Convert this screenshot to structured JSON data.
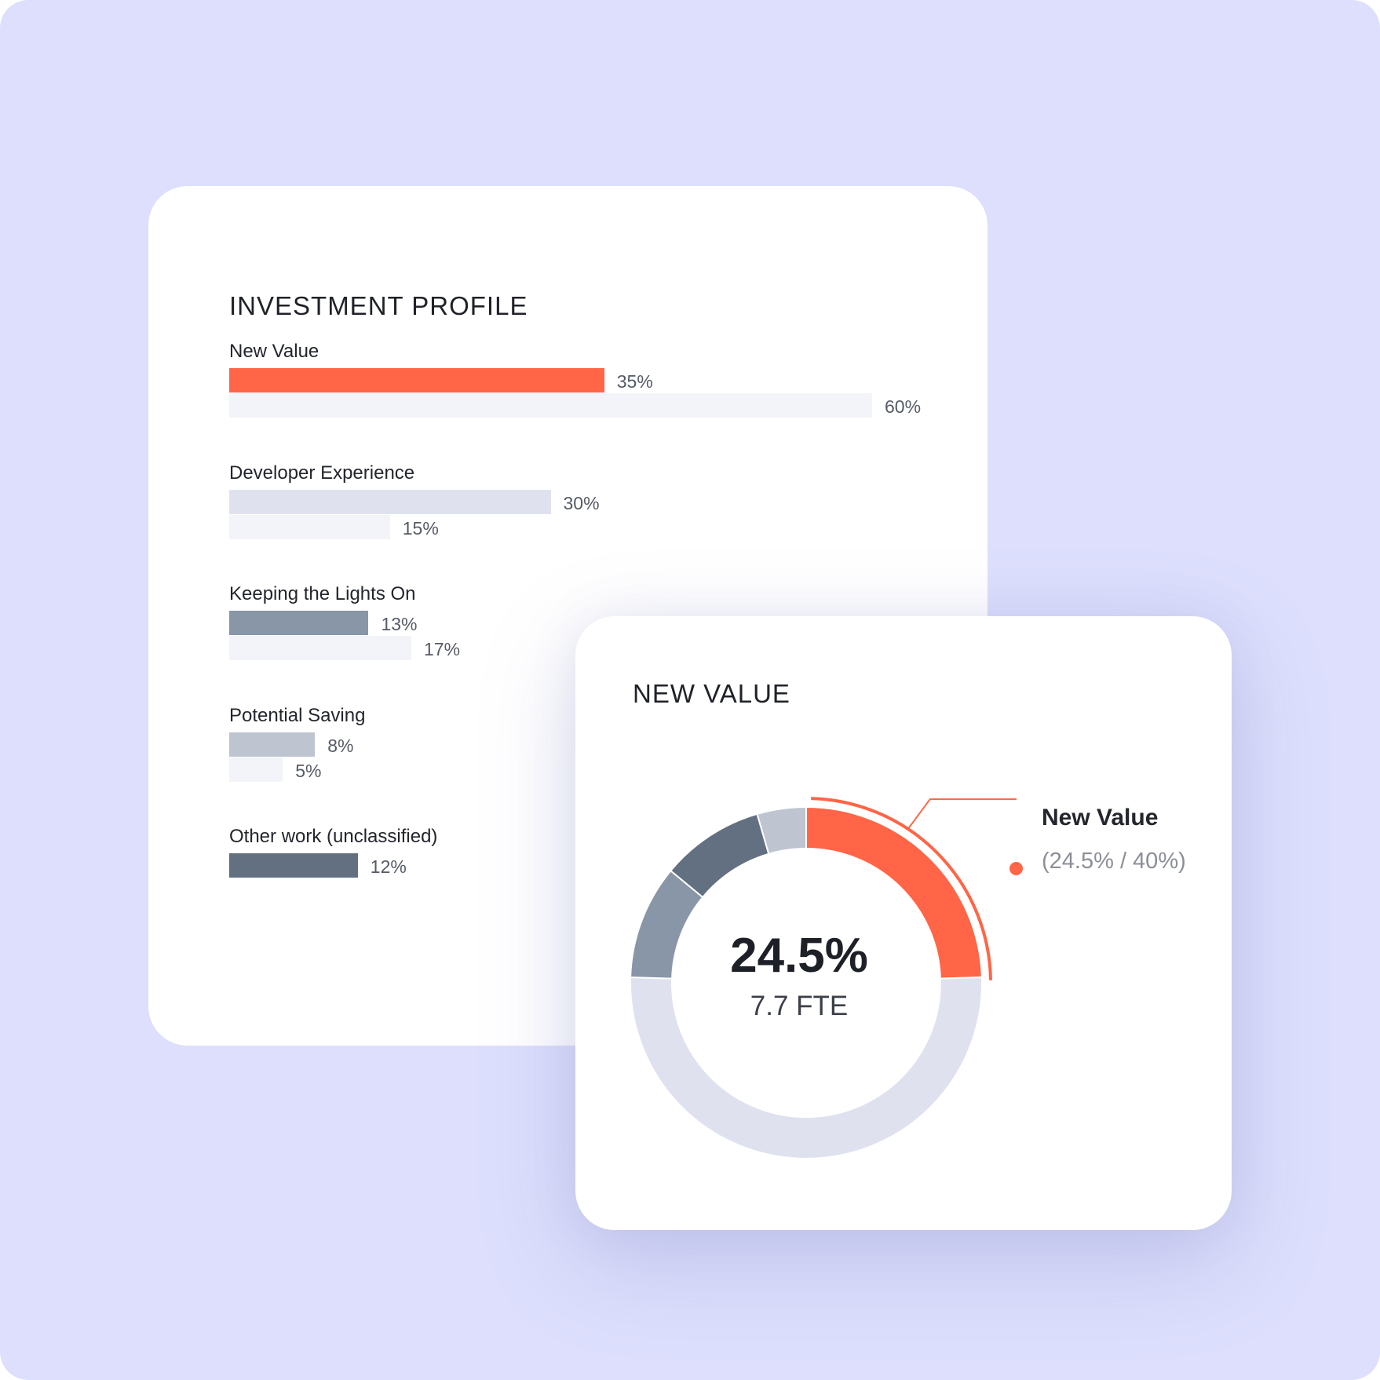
{
  "colors": {
    "background": "#dddffd",
    "accent": "#ff6546",
    "target_bar": "#f3f4f9",
    "dev_experience": "#dfe2ee",
    "keeping_lights_on": "#8996a7",
    "potential_saving": "#bec4d0",
    "other_work": "#627081",
    "donut_remainder": "#dfe2ee"
  },
  "investment_profile": {
    "title": "INVESTMENT PROFILE"
  },
  "new_value_panel": {
    "title": "NEW VALUE",
    "center_value": "24.5%",
    "center_sub": "7.7 FTE",
    "legend": {
      "name": "New Value",
      "detail": "(24.5% / 40%)"
    }
  },
  "chart_data": [
    {
      "type": "bar",
      "orientation": "horizontal",
      "title": "INVESTMENT PROFILE",
      "categories": [
        "New Value",
        "Developer Experience",
        "Keeping the Lights On",
        "Potential Saving",
        "Other work (unclassified)"
      ],
      "series": [
        {
          "values": [
            35,
            30,
            13,
            8,
            12
          ],
          "labels": [
            "35%",
            "30%",
            "13%",
            "8%",
            "12%"
          ]
        },
        {
          "values": [
            60,
            15,
            17,
            5,
            null
          ],
          "labels": [
            "60%",
            "15%",
            "17%",
            "5%",
            null
          ]
        }
      ],
      "unit": "%"
    },
    {
      "type": "pie",
      "variant": "donut",
      "title": "NEW VALUE",
      "slices": [
        {
          "label": "New Value",
          "value": 24.5,
          "color": "#ff6546"
        },
        {
          "value": 51,
          "color": "#dfe2ee"
        },
        {
          "value": 10.5,
          "color": "#8996a7"
        },
        {
          "value": 9.5,
          "color": "#627081"
        },
        {
          "value": 4.5,
          "color": "#bec4d0"
        }
      ],
      "target": 40,
      "center_text": "24.5%",
      "center_subtext": "7.7 FTE",
      "legend": "right"
    }
  ]
}
